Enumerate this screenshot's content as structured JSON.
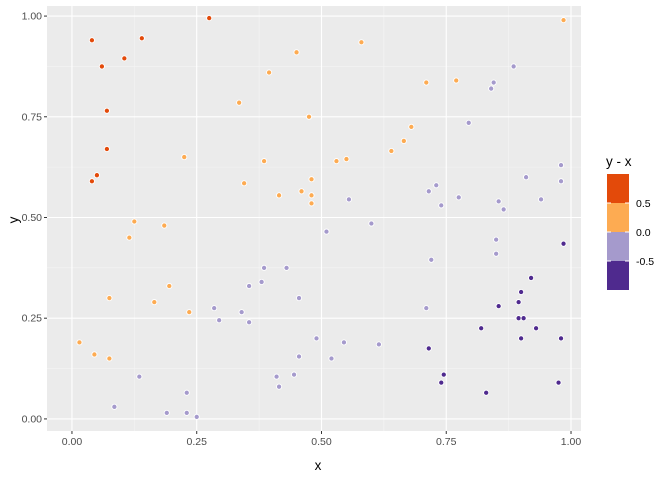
{
  "chart_data": {
    "type": "scatter",
    "title": "",
    "xlabel": "x",
    "ylabel": "y",
    "xlim": [
      -0.05,
      1.02
    ],
    "ylim": [
      -0.03,
      1.025
    ],
    "x_ticks": [
      0,
      0.25,
      0.5,
      0.75,
      1
    ],
    "x_tick_labels": [
      "0.00",
      "0.25",
      "0.50",
      "0.75",
      "1.00"
    ],
    "y_ticks": [
      0,
      0.25,
      0.5,
      0.75,
      1
    ],
    "y_tick_labels": [
      "0.00",
      "0.25",
      "0.50",
      "0.75",
      "1.00"
    ],
    "grid": true,
    "point_fill": "y - x",
    "legend": {
      "title": "y - x",
      "position": "right",
      "colors": [
        "#e34a0a",
        "#fdab52",
        "#a59acc",
        "#4f2a8e"
      ],
      "breaks": [
        "0.5",
        "0.0",
        "-0.5"
      ]
    },
    "points": [
      [
        0.04,
        0.94
      ],
      [
        0.06,
        0.875
      ],
      [
        0.105,
        0.895
      ],
      [
        0.14,
        0.945
      ],
      [
        0.275,
        0.995
      ],
      [
        0.07,
        0.765
      ],
      [
        0.07,
        0.67
      ],
      [
        0.05,
        0.605
      ],
      [
        0.04,
        0.59
      ],
      [
        0.985,
        0.99
      ],
      [
        0.45,
        0.91
      ],
      [
        0.58,
        0.935
      ],
      [
        0.395,
        0.86
      ],
      [
        0.77,
        0.84
      ],
      [
        0.71,
        0.835
      ],
      [
        0.335,
        0.785
      ],
      [
        0.475,
        0.75
      ],
      [
        0.68,
        0.725
      ],
      [
        0.665,
        0.69
      ],
      [
        0.64,
        0.665
      ],
      [
        0.225,
        0.65
      ],
      [
        0.385,
        0.64
      ],
      [
        0.53,
        0.64
      ],
      [
        0.55,
        0.645
      ],
      [
        0.345,
        0.585
      ],
      [
        0.48,
        0.595
      ],
      [
        0.46,
        0.565
      ],
      [
        0.48,
        0.555
      ],
      [
        0.48,
        0.535
      ],
      [
        0.415,
        0.555
      ],
      [
        0.125,
        0.49
      ],
      [
        0.115,
        0.45
      ],
      [
        0.185,
        0.48
      ],
      [
        0.075,
        0.3
      ],
      [
        0.195,
        0.33
      ],
      [
        0.165,
        0.29
      ],
      [
        0.235,
        0.265
      ],
      [
        0.015,
        0.19
      ],
      [
        0.045,
        0.16
      ],
      [
        0.075,
        0.15
      ],
      [
        0.845,
        0.835
      ],
      [
        0.84,
        0.82
      ],
      [
        0.885,
        0.875
      ],
      [
        0.795,
        0.735
      ],
      [
        0.73,
        0.58
      ],
      [
        0.715,
        0.565
      ],
      [
        0.74,
        0.53
      ],
      [
        0.775,
        0.55
      ],
      [
        0.91,
        0.6
      ],
      [
        0.98,
        0.63
      ],
      [
        0.98,
        0.59
      ],
      [
        0.855,
        0.54
      ],
      [
        0.865,
        0.52
      ],
      [
        0.94,
        0.545
      ],
      [
        0.555,
        0.545
      ],
      [
        0.6,
        0.485
      ],
      [
        0.51,
        0.465
      ],
      [
        0.85,
        0.445
      ],
      [
        0.85,
        0.41
      ],
      [
        0.72,
        0.395
      ],
      [
        0.385,
        0.375
      ],
      [
        0.43,
        0.375
      ],
      [
        0.355,
        0.33
      ],
      [
        0.38,
        0.34
      ],
      [
        0.455,
        0.3
      ],
      [
        0.285,
        0.275
      ],
      [
        0.295,
        0.245
      ],
      [
        0.34,
        0.265
      ],
      [
        0.355,
        0.24
      ],
      [
        0.71,
        0.275
      ],
      [
        0.49,
        0.2
      ],
      [
        0.545,
        0.19
      ],
      [
        0.455,
        0.155
      ],
      [
        0.52,
        0.15
      ],
      [
        0.615,
        0.185
      ],
      [
        0.135,
        0.105
      ],
      [
        0.41,
        0.105
      ],
      [
        0.445,
        0.11
      ],
      [
        0.415,
        0.08
      ],
      [
        0.23,
        0.065
      ],
      [
        0.085,
        0.03
      ],
      [
        0.19,
        0.015
      ],
      [
        0.23,
        0.015
      ],
      [
        0.25,
        0.005
      ],
      [
        0.985,
        0.435
      ],
      [
        0.92,
        0.35
      ],
      [
        0.9,
        0.315
      ],
      [
        0.895,
        0.29
      ],
      [
        0.855,
        0.28
      ],
      [
        0.895,
        0.25
      ],
      [
        0.905,
        0.25
      ],
      [
        0.93,
        0.225
      ],
      [
        0.82,
        0.225
      ],
      [
        0.9,
        0.2
      ],
      [
        0.98,
        0.2
      ],
      [
        0.715,
        0.175
      ],
      [
        0.745,
        0.11
      ],
      [
        0.74,
        0.09
      ],
      [
        0.975,
        0.09
      ],
      [
        0.83,
        0.065
      ]
    ]
  }
}
